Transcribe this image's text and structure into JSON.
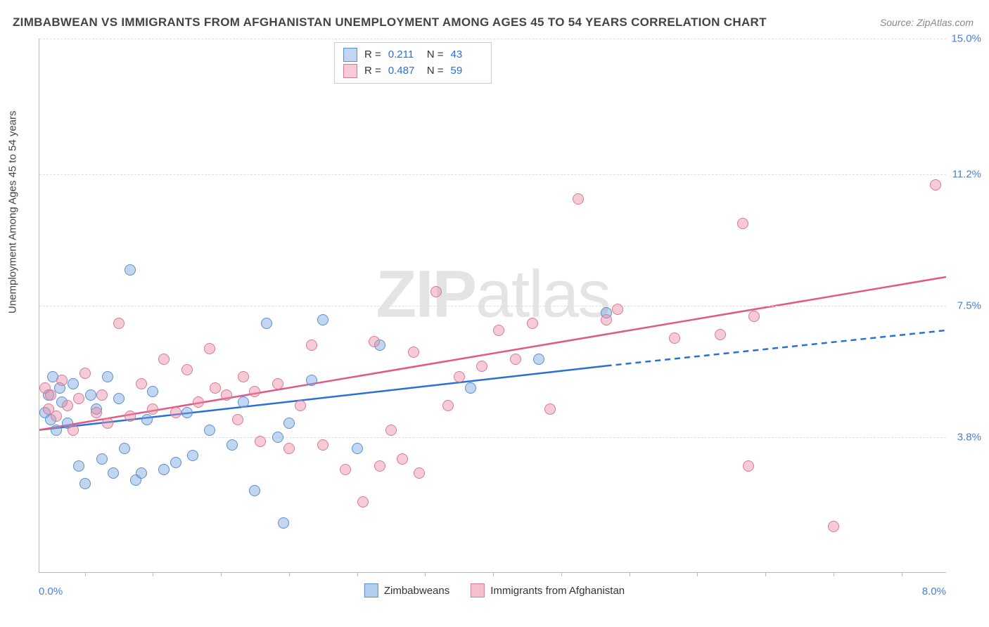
{
  "chart": {
    "title": "ZIMBABWEAN VS IMMIGRANTS FROM AFGHANISTAN UNEMPLOYMENT AMONG AGES 45 TO 54 YEARS CORRELATION CHART",
    "source": "Source: ZipAtlas.com",
    "ylabel": "Unemployment Among Ages 45 to 54 years",
    "watermark_1": "ZIP",
    "watermark_2": "atlas",
    "type": "scatter",
    "xlim": [
      0,
      8
    ],
    "ylim": [
      0,
      15
    ],
    "x_tick_positions": [
      0.4,
      1.0,
      1.6,
      2.2,
      2.8,
      3.4,
      4.0,
      4.6,
      5.2,
      5.8,
      6.4,
      7.0,
      7.6
    ],
    "y_gridlines": [
      3.8,
      7.5,
      11.2,
      15.0
    ],
    "y_tick_labels": [
      "3.8%",
      "7.5%",
      "11.2%",
      "15.0%"
    ],
    "xmin_label": "0.0%",
    "xmax_label": "8.0%",
    "background_color": "#ffffff",
    "grid_color": "#dddddd",
    "axis_color": "#bbbbbb",
    "marker_size": 16,
    "marker_opacity": 0.55,
    "series": [
      {
        "name": "Zimbabweans",
        "color_fill": "rgba(120,165,225,0.45)",
        "color_stroke": "#5a8fd0",
        "trend_color": "#2a6fd6",
        "trend_solid": [
          [
            0,
            4.0
          ],
          [
            5.0,
            5.8
          ]
        ],
        "trend_dashed": [
          [
            5.0,
            5.8
          ],
          [
            8.0,
            6.8
          ]
        ],
        "R": "0.211",
        "N": "43",
        "points": [
          [
            0.05,
            4.5
          ],
          [
            0.08,
            5.0
          ],
          [
            0.1,
            4.3
          ],
          [
            0.12,
            5.5
          ],
          [
            0.15,
            4.0
          ],
          [
            0.18,
            5.2
          ],
          [
            0.2,
            4.8
          ],
          [
            0.25,
            4.2
          ],
          [
            0.3,
            5.3
          ],
          [
            0.35,
            3.0
          ],
          [
            0.4,
            2.5
          ],
          [
            0.45,
            5.0
          ],
          [
            0.5,
            4.6
          ],
          [
            0.55,
            3.2
          ],
          [
            0.6,
            5.5
          ],
          [
            0.65,
            2.8
          ],
          [
            0.7,
            4.9
          ],
          [
            0.75,
            3.5
          ],
          [
            0.8,
            8.5
          ],
          [
            0.85,
            2.6
          ],
          [
            0.9,
            2.8
          ],
          [
            0.95,
            4.3
          ],
          [
            1.0,
            5.1
          ],
          [
            1.1,
            2.9
          ],
          [
            1.2,
            3.1
          ],
          [
            1.3,
            4.5
          ],
          [
            1.35,
            3.3
          ],
          [
            1.5,
            4.0
          ],
          [
            1.7,
            3.6
          ],
          [
            1.8,
            4.8
          ],
          [
            1.9,
            2.3
          ],
          [
            2.0,
            7.0
          ],
          [
            2.1,
            3.8
          ],
          [
            2.15,
            1.4
          ],
          [
            2.2,
            4.2
          ],
          [
            2.4,
            5.4
          ],
          [
            2.5,
            7.1
          ],
          [
            2.8,
            3.5
          ],
          [
            3.0,
            6.4
          ],
          [
            3.8,
            5.2
          ],
          [
            4.4,
            6.0
          ],
          [
            5.0,
            7.3
          ]
        ]
      },
      {
        "name": "Immigrants from Afghanistan",
        "color_fill": "rgba(235,140,165,0.45)",
        "color_stroke": "#d67a95",
        "trend_color": "#e05a85",
        "trend_solid": [
          [
            0,
            4.0
          ],
          [
            8.0,
            8.3
          ]
        ],
        "trend_dashed": null,
        "R": "0.487",
        "N": "59",
        "points": [
          [
            0.05,
            5.2
          ],
          [
            0.08,
            4.6
          ],
          [
            0.1,
            5.0
          ],
          [
            0.15,
            4.4
          ],
          [
            0.2,
            5.4
          ],
          [
            0.25,
            4.7
          ],
          [
            0.3,
            4.0
          ],
          [
            0.35,
            4.9
          ],
          [
            0.4,
            5.6
          ],
          [
            0.5,
            4.5
          ],
          [
            0.55,
            5.0
          ],
          [
            0.6,
            4.2
          ],
          [
            0.7,
            7.0
          ],
          [
            0.8,
            4.4
          ],
          [
            0.9,
            5.3
          ],
          [
            1.0,
            4.6
          ],
          [
            1.1,
            6.0
          ],
          [
            1.2,
            4.5
          ],
          [
            1.3,
            5.7
          ],
          [
            1.4,
            4.8
          ],
          [
            1.5,
            6.3
          ],
          [
            1.55,
            5.2
          ],
          [
            1.65,
            5.0
          ],
          [
            1.75,
            4.3
          ],
          [
            1.8,
            5.5
          ],
          [
            1.9,
            5.1
          ],
          [
            1.95,
            3.7
          ],
          [
            2.1,
            5.3
          ],
          [
            2.2,
            3.5
          ],
          [
            2.3,
            4.7
          ],
          [
            2.4,
            6.4
          ],
          [
            2.5,
            3.6
          ],
          [
            2.7,
            2.9
          ],
          [
            2.85,
            2.0
          ],
          [
            2.95,
            6.5
          ],
          [
            3.0,
            3.0
          ],
          [
            3.1,
            4.0
          ],
          [
            3.2,
            3.2
          ],
          [
            3.3,
            6.2
          ],
          [
            3.35,
            2.8
          ],
          [
            3.5,
            7.9
          ],
          [
            3.6,
            4.7
          ],
          [
            3.7,
            5.5
          ],
          [
            3.9,
            5.8
          ],
          [
            4.05,
            6.8
          ],
          [
            4.2,
            6.0
          ],
          [
            4.35,
            7.0
          ],
          [
            4.5,
            4.6
          ],
          [
            4.75,
            10.5
          ],
          [
            5.0,
            7.1
          ],
          [
            5.1,
            7.4
          ],
          [
            5.6,
            6.6
          ],
          [
            6.0,
            6.7
          ],
          [
            6.2,
            9.8
          ],
          [
            6.25,
            3.0
          ],
          [
            6.3,
            7.2
          ],
          [
            7.0,
            1.3
          ],
          [
            7.9,
            10.9
          ]
        ]
      }
    ],
    "legend_top": {
      "R_label": "R =",
      "N_label": "N ="
    },
    "legend_bottom": [
      {
        "label": "Zimbabweans",
        "fill": "rgba(120,165,225,0.55)",
        "stroke": "#5a8fd0"
      },
      {
        "label": "Immigrants from Afghanistan",
        "fill": "rgba(235,140,165,0.55)",
        "stroke": "#d67a95"
      }
    ]
  }
}
